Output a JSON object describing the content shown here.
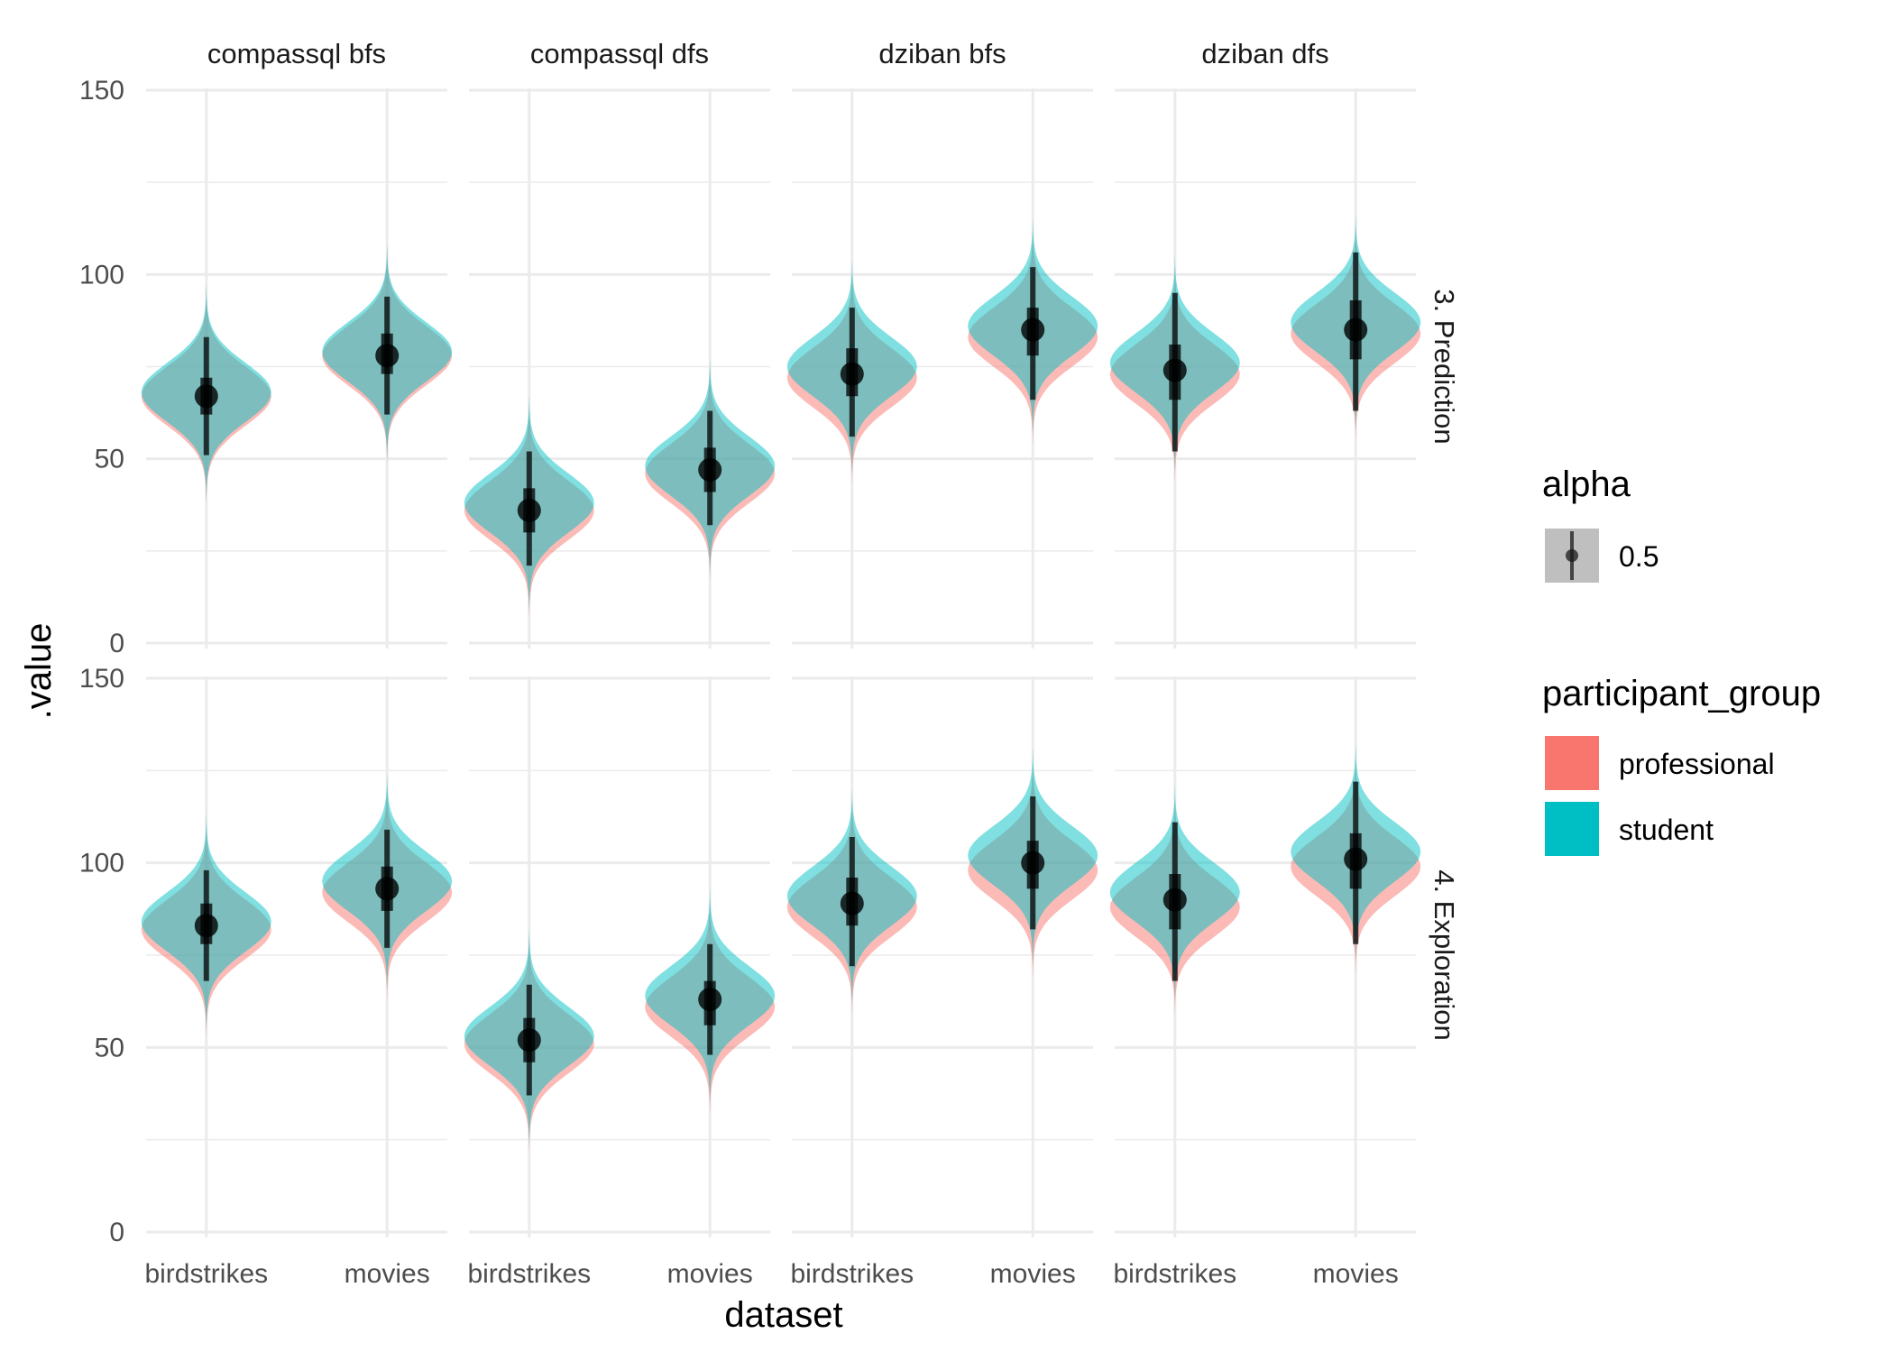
{
  "chart_data": {
    "type": "violin",
    "xlabel": "dataset",
    "ylabel": ".value",
    "ylim": [
      0,
      150
    ],
    "y_ticks": [
      "0",
      "50",
      "100",
      "150"
    ],
    "categories": [
      "birdstrikes",
      "movies"
    ],
    "column_facets": [
      "compassql bfs",
      "compassql dfs",
      "dziban bfs",
      "dziban dfs"
    ],
    "row_facets": [
      "3. Prediction",
      "4. Exploration"
    ],
    "grid": true,
    "legend_position": "right",
    "legends": {
      "alpha": {
        "title": "alpha",
        "entries": [
          "0.5"
        ]
      },
      "fill": {
        "title": "participant_group",
        "entries": [
          {
            "name": "professional",
            "color": "#F8766D"
          },
          {
            "name": "student",
            "color": "#00BFC4"
          }
        ]
      }
    },
    "series": [
      {
        "name": "professional",
        "color": "#F8766D",
        "values": [
          [
            [
              67,
              78
            ],
            [
              36,
              46
            ],
            [
              72,
              83
            ],
            [
              73,
              84
            ]
          ],
          [
            [
              82,
              92
            ],
            [
              51,
              61
            ],
            [
              88,
              98
            ],
            [
              88,
              99
            ]
          ]
        ]
      },
      {
        "name": "student",
        "color": "#00BFC4",
        "values": [
          [
            [
              68,
              79
            ],
            [
              38,
              48
            ],
            [
              75,
              86
            ],
            [
              76,
              87
            ]
          ],
          [
            [
              84,
              95
            ],
            [
              53,
              64
            ],
            [
              91,
              102
            ],
            [
              92,
              103
            ]
          ]
        ]
      }
    ],
    "pooled_estimate": {
      "median": [
        [
          [
            67,
            78
          ],
          [
            36,
            47
          ],
          [
            73,
            85
          ],
          [
            74,
            85
          ]
        ],
        [
          [
            83,
            93
          ],
          [
            52,
            63
          ],
          [
            89,
            100
          ],
          [
            90,
            101
          ]
        ]
      ],
      "interval_66": [
        [
          [
            62,
            72,
            73,
            84
          ],
          [
            30,
            42,
            41,
            53
          ],
          [
            67,
            80,
            78,
            91
          ],
          [
            66,
            81,
            77,
            93
          ]
        ],
        [
          [
            78,
            89,
            87,
            99
          ],
          [
            46,
            58,
            56,
            68
          ],
          [
            83,
            96,
            93,
            106
          ],
          [
            82,
            97,
            93,
            108
          ]
        ]
      ],
      "interval_95": [
        [
          [
            51,
            83,
            62,
            94
          ],
          [
            21,
            52,
            32,
            63
          ],
          [
            56,
            91,
            66,
            102
          ],
          [
            52,
            95,
            63,
            106
          ]
        ],
        [
          [
            68,
            98,
            77,
            109
          ],
          [
            37,
            67,
            48,
            78
          ],
          [
            72,
            107,
            82,
            118
          ],
          [
            68,
            111,
            78,
            122
          ]
        ]
      ]
    }
  }
}
